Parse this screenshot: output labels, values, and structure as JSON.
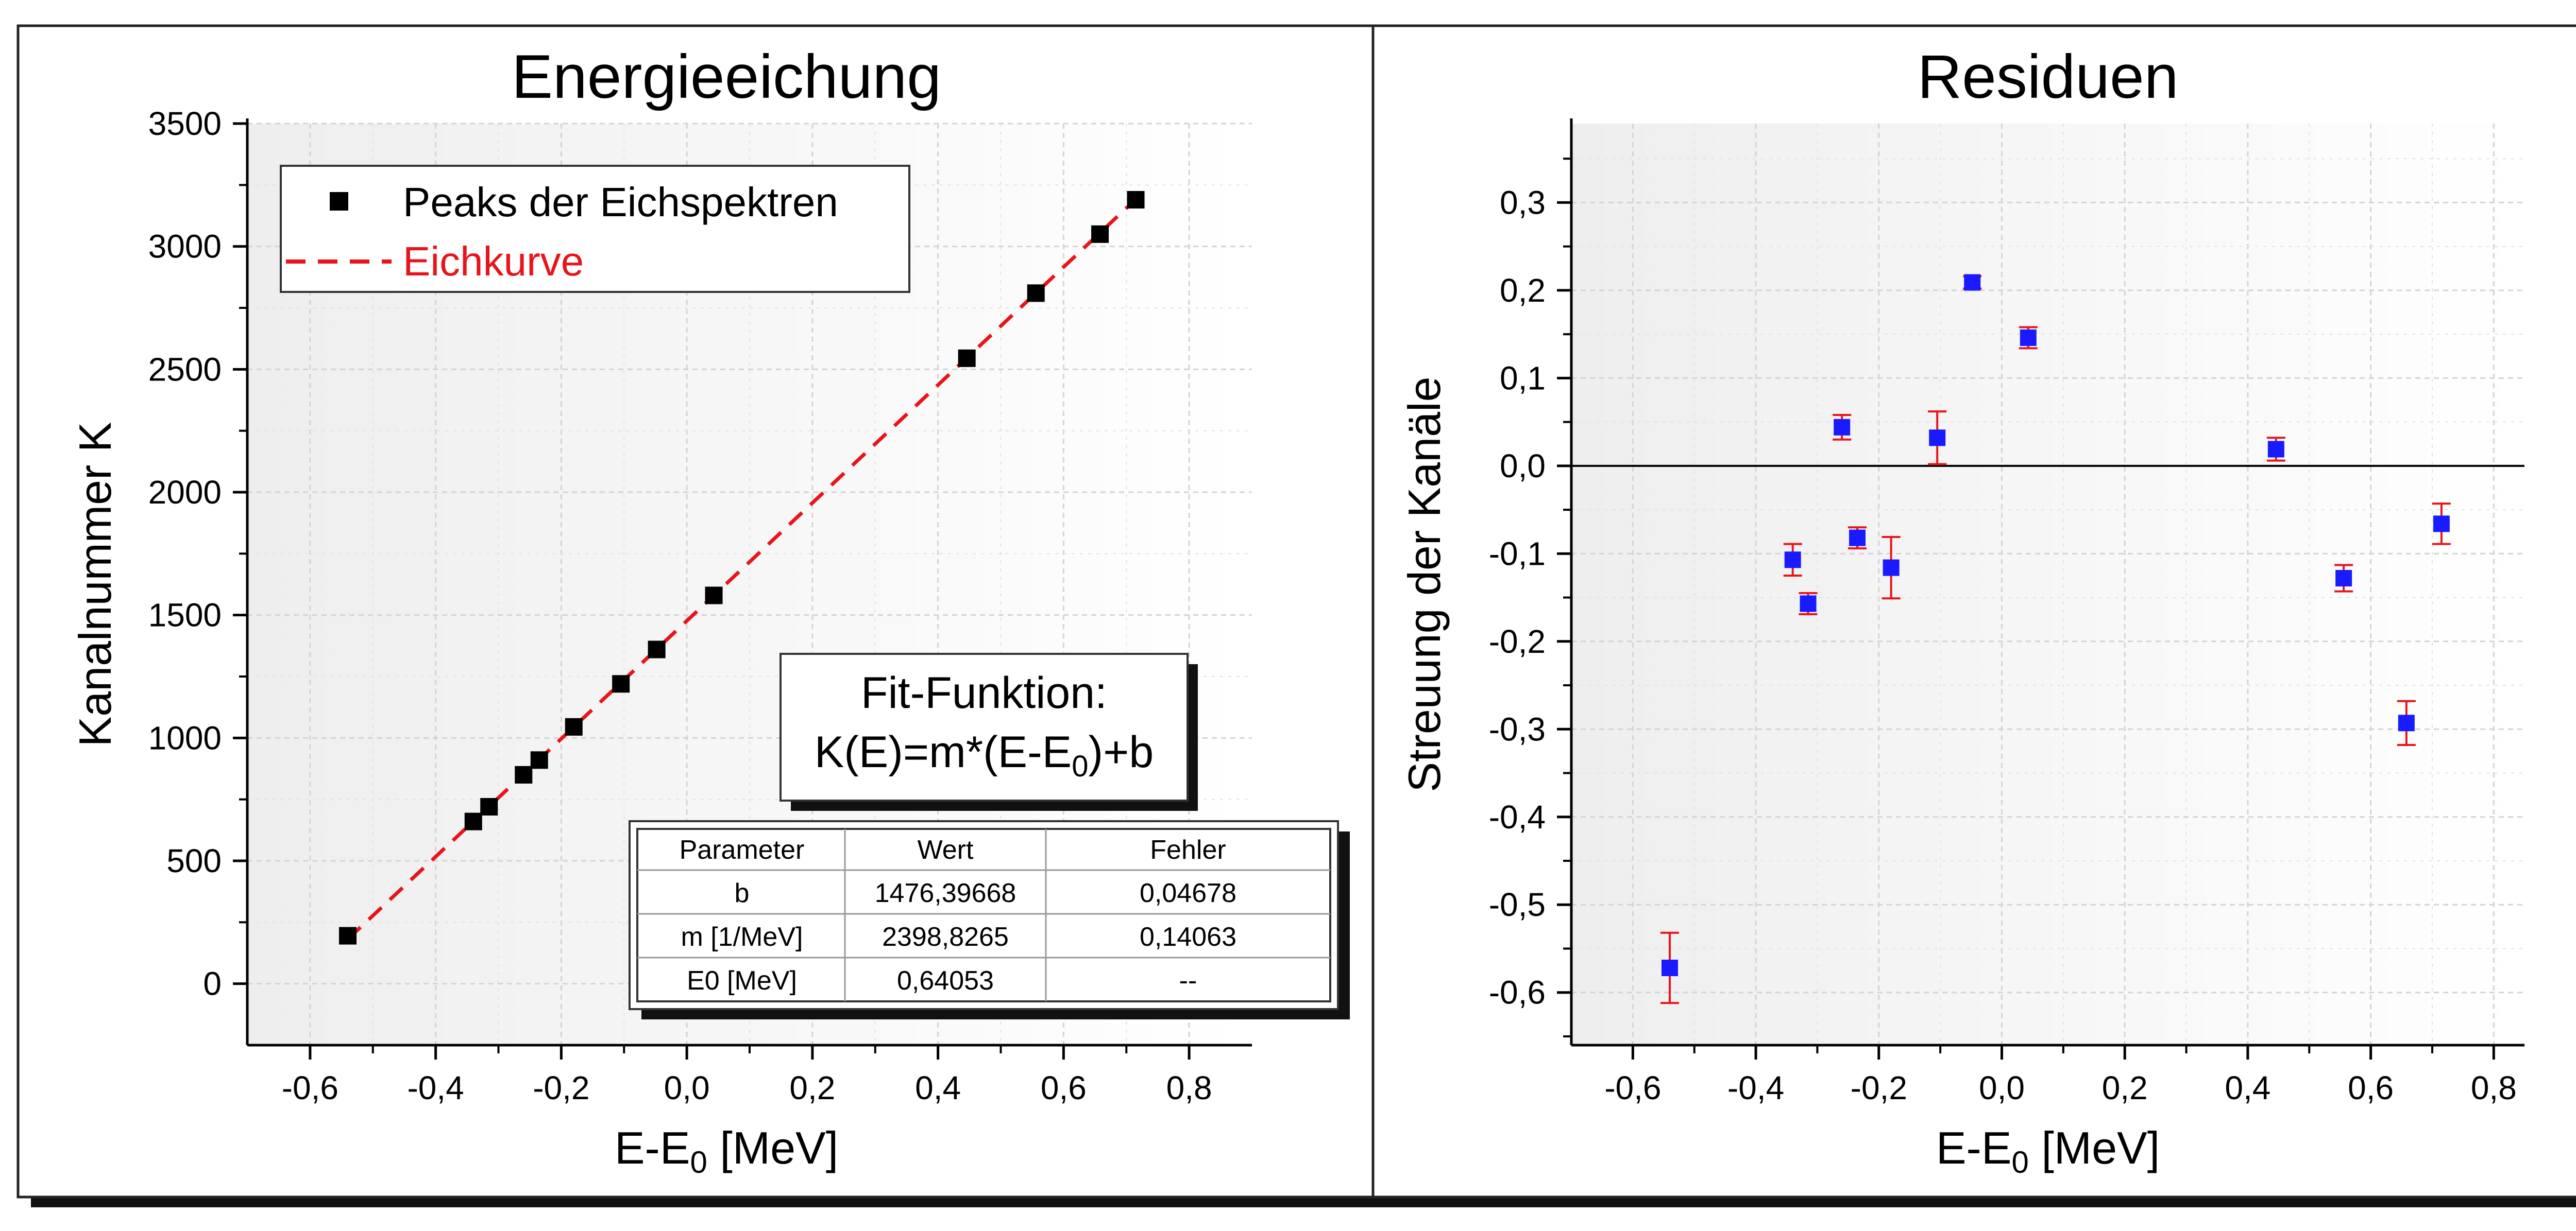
{
  "chart_data": [
    {
      "type": "scatter",
      "title": "Energieeichung",
      "xlabel_main": "E-E",
      "xlabel_sub": "0",
      "xlabel_unit": " [MeV]",
      "ylabel": "Kanalnummer K",
      "xlim": [
        -0.7,
        0.9
      ],
      "ylim": [
        -250,
        3500
      ],
      "xticks": [
        -0.6,
        -0.4,
        -0.2,
        0.0,
        0.2,
        0.4,
        0.6,
        0.8
      ],
      "xtick_labels": [
        "-0,6",
        "-0,4",
        "-0,2",
        "0,0",
        "0,2",
        "0,4",
        "0,6",
        "0,8"
      ],
      "yticks": [
        0,
        500,
        1000,
        1500,
        2000,
        2500,
        3000,
        3500
      ],
      "ytick_labels": [
        "0",
        "500",
        "1000",
        "1500",
        "2000",
        "2500",
        "3000",
        "3500"
      ],
      "grid": true,
      "legend_position": "top-left",
      "legend": [
        {
          "label": "Peaks der Eichspektren",
          "kind": "marker",
          "color": "#000000"
        },
        {
          "label": "Eichkurve",
          "kind": "dashed-line",
          "color": "#e8141b"
        }
      ],
      "series": [
        {
          "name": "Peaks der Eichspektren",
          "color": "#000000",
          "x": [
            -0.54,
            -0.34,
            -0.315,
            -0.26,
            -0.235,
            -0.18,
            -0.105,
            -0.048,
            0.043,
            0.446,
            0.556,
            0.658,
            0.715
          ],
          "y": [
            195,
            660,
            720,
            850,
            910,
            1045,
            1220,
            1360,
            1580,
            2545,
            2810,
            3050,
            3190
          ]
        },
        {
          "name": "Eichkurve",
          "color": "#e8141b",
          "x": [
            -0.54,
            0.715
          ],
          "y": [
            181,
            3192
          ]
        }
      ],
      "fit_box": {
        "line1": "Fit-Funktion:",
        "line2_pre": "K(E)=m*(E-E",
        "line2_sub": "0",
        "line2_post": ")+b"
      },
      "table": {
        "headers": [
          "Parameter",
          "Wert",
          "Fehler"
        ],
        "rows": [
          [
            "b",
            "1476,39668",
            "0,04678"
          ],
          [
            "m [1/MeV]",
            "2398,8265",
            "0,14063"
          ],
          [
            "E0 [MeV]",
            "0,64053",
            "--"
          ]
        ]
      }
    },
    {
      "type": "scatter",
      "title": "Residuen",
      "xlabel_main": "E-E",
      "xlabel_sub": "0",
      "xlabel_unit": " [MeV]",
      "ylabel": "Streuung der Kanäle",
      "xlim": [
        -0.7,
        0.85
      ],
      "ylim": [
        -0.66,
        0.39
      ],
      "xticks": [
        -0.6,
        -0.4,
        -0.2,
        0.0,
        0.2,
        0.4,
        0.6,
        0.8
      ],
      "xtick_labels": [
        "-0,6",
        "-0,4",
        "-0,2",
        "0,0",
        "0,2",
        "0,4",
        "0,6",
        "0,8"
      ],
      "yticks": [
        -0.6,
        -0.5,
        -0.4,
        -0.3,
        -0.2,
        -0.1,
        0.0,
        0.1,
        0.2,
        0.3
      ],
      "ytick_labels": [
        "-0,6",
        "-0,5",
        "-0,4",
        "-0,3",
        "-0,2",
        "-0,1",
        "0,0",
        "0,1",
        "0,2",
        "0,3"
      ],
      "grid": true,
      "zero_line": true,
      "series": [
        {
          "marker_color": "#1a1aff",
          "error_color": "#e8141b",
          "x": [
            -0.54,
            -0.34,
            -0.315,
            -0.26,
            -0.235,
            -0.18,
            -0.105,
            -0.048,
            0.043,
            0.446,
            0.556,
            0.658,
            0.715
          ],
          "y": [
            -0.572,
            -0.107,
            -0.157,
            0.044,
            -0.082,
            -0.116,
            0.032,
            0.209,
            0.146,
            0.019,
            -0.128,
            -0.293,
            -0.066
          ],
          "err": [
            0.04,
            0.018,
            0.012,
            0.014,
            0.012,
            0.035,
            0.03,
            0.007,
            0.012,
            0.013,
            0.015,
            0.025,
            0.023
          ]
        }
      ]
    }
  ]
}
